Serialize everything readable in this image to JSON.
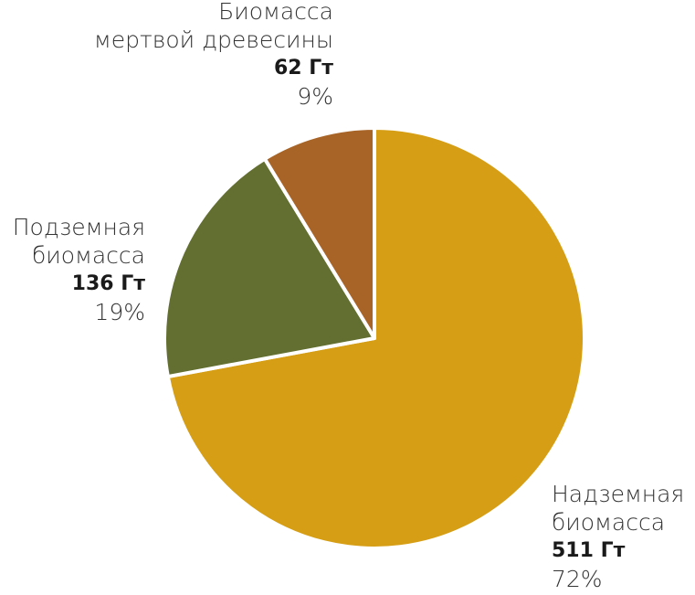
{
  "chart_data": {
    "type": "pie",
    "start_angle": "12 o'clock",
    "direction": "clockwise",
    "slices": [
      {
        "name": "Надземная биомасса",
        "name_lines": [
          "Надземная",
          "биомасса"
        ],
        "value": 511,
        "value_label": "511 Гт",
        "percent_label": "72%",
        "color": "#D59E14"
      },
      {
        "name": "Подземная биомасса",
        "name_lines": [
          "Подземная",
          "биомасса"
        ],
        "value": 136,
        "value_label": "136 Гт",
        "percent_label": "19%",
        "color": "#636F30"
      },
      {
        "name": "Биомасса мертвой древесины",
        "name_lines": [
          "Биомасса",
          "мертвой древесины"
        ],
        "value": 62,
        "value_label": "62 Гт",
        "percent_label": "9%",
        "color": "#A86426"
      }
    ]
  }
}
